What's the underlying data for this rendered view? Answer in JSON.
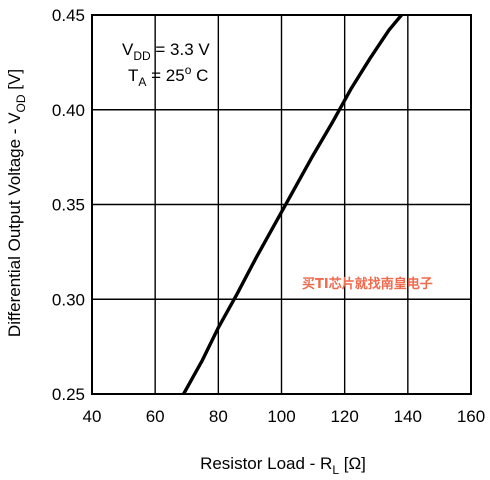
{
  "chart_data": {
    "type": "line",
    "xlabel": {
      "main": "Resistor Load - R",
      "sub": "L",
      "unit": " [Ω]"
    },
    "ylabel": {
      "main": "Differential Output Voltage - V",
      "sub": "OD",
      "unit": " [V]"
    },
    "xlim": [
      40,
      160
    ],
    "ylim": [
      0.25,
      0.45
    ],
    "x_ticks": [
      "40",
      "60",
      "80",
      "100",
      "120",
      "140",
      "160"
    ],
    "y_ticks": [
      "0.25",
      "0.30",
      "0.35",
      "0.40",
      "0.45"
    ],
    "grid": true,
    "annotation": {
      "line1": {
        "main": "V",
        "sub": "DD",
        "rest": " = 3.3 V"
      },
      "line2": {
        "main": "T",
        "sub": "A",
        "rest": " = 25",
        "sup": "o",
        "tail": " C"
      }
    },
    "series": [
      {
        "x": [
          69,
          75,
          80,
          86,
          92,
          98,
          104,
          110,
          116,
          122,
          128,
          134,
          138
        ],
        "y": [
          0.25,
          0.268,
          0.285,
          0.303,
          0.322,
          0.34,
          0.358,
          0.376,
          0.393,
          0.411,
          0.427,
          0.442,
          0.45
        ]
      }
    ],
    "watermark": "买TI芯片就找南皇电子"
  }
}
